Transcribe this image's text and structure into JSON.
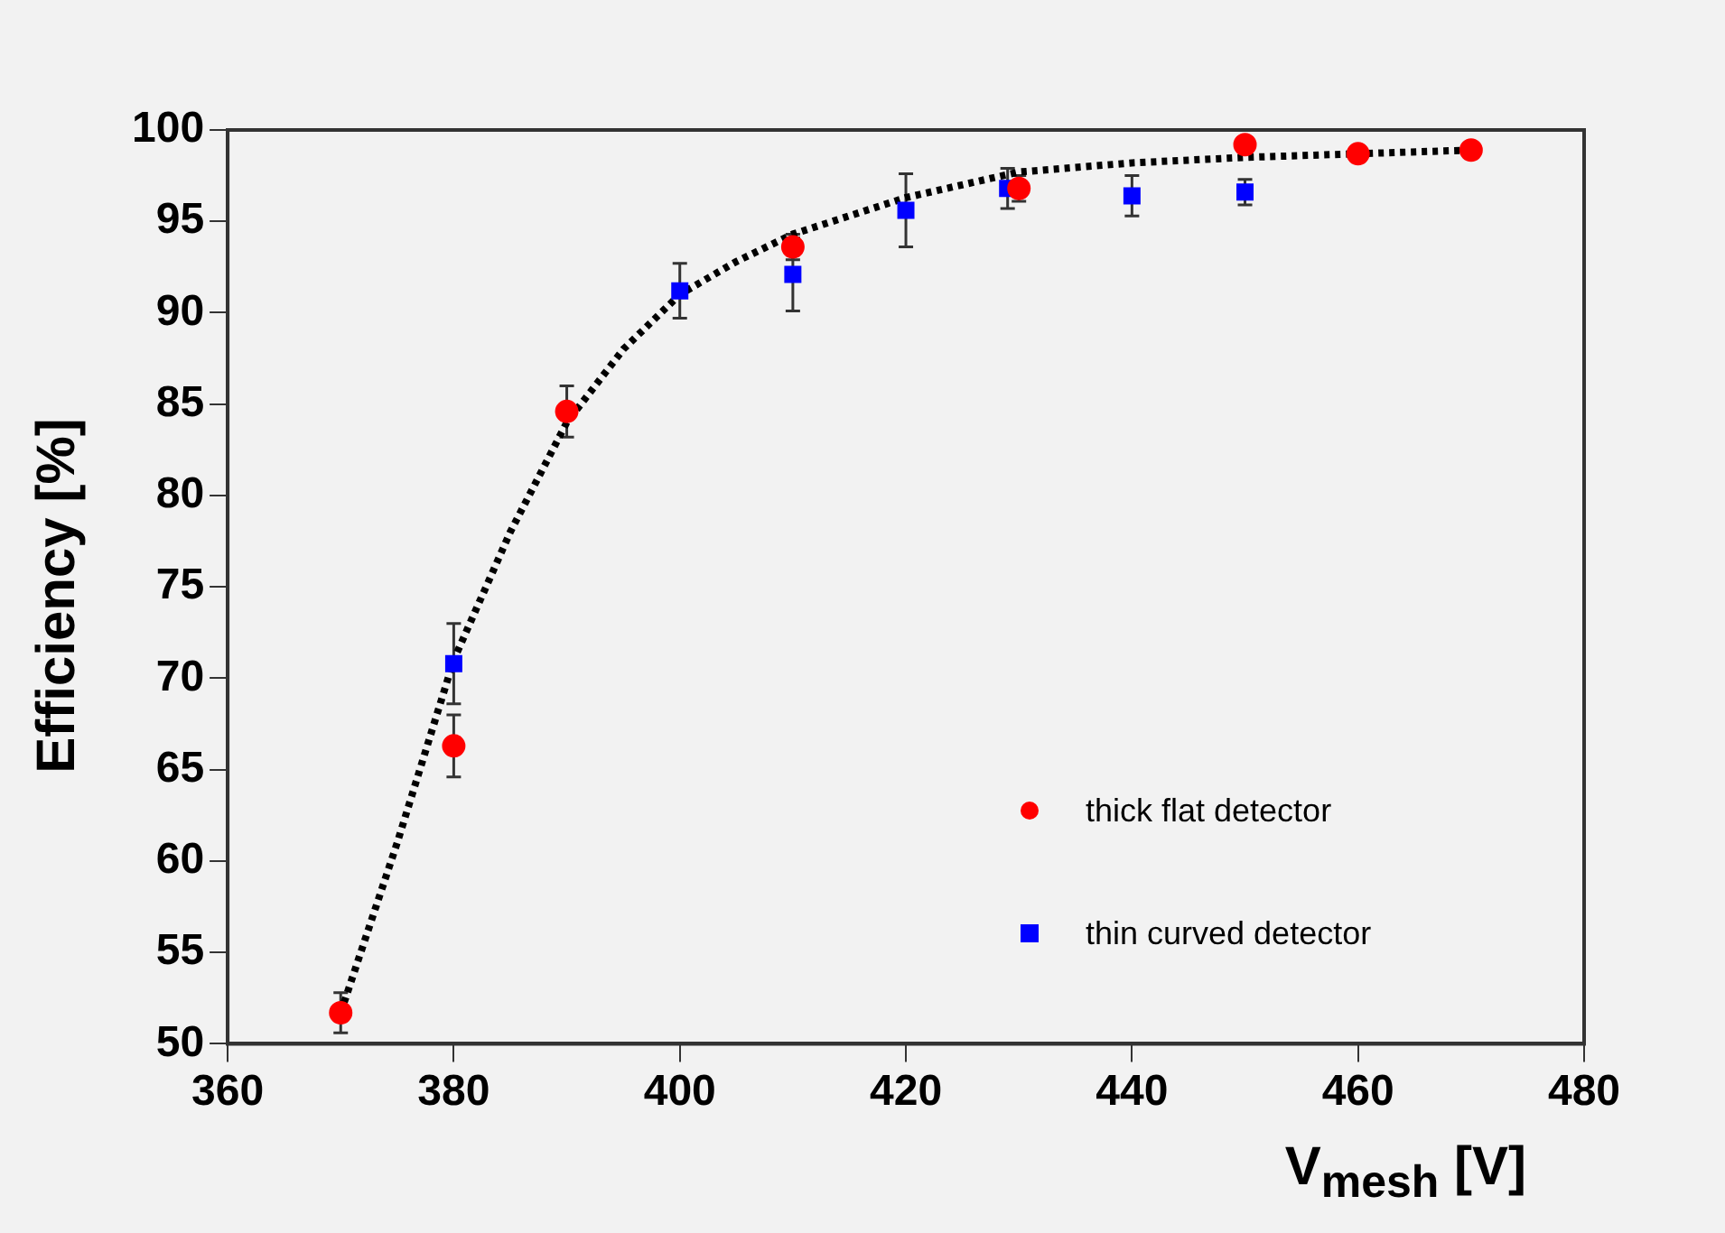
{
  "chart_data": {
    "type": "scatter",
    "xlabel": "V$_{mesh}$ [V]",
    "ylabel": "Efficiency [%]",
    "xlim": [
      360,
      480
    ],
    "xticks": [
      360,
      380,
      400,
      420,
      440,
      460,
      480
    ],
    "ylim": [
      50,
      100
    ],
    "yticks": [
      50,
      55,
      60,
      65,
      70,
      75,
      80,
      85,
      90,
      95,
      100
    ],
    "grid": false,
    "legend": "bottom right",
    "series": [
      {
        "name": "thick flat detector",
        "color": "#ff0000",
        "marker": "circle",
        "x": [
          370,
          380,
          390,
          410,
          430,
          450,
          460,
          470
        ],
        "values": [
          51.7,
          66.3,
          84.6,
          93.6,
          96.8,
          99.2,
          98.7,
          98.9
        ],
        "errors": [
          1.1,
          1.7,
          1.4,
          0.7,
          0.7,
          null,
          null,
          null
        ]
      },
      {
        "name": "thin curved detector",
        "color": "#0000ff",
        "marker": "square",
        "x": [
          380,
          400,
          410,
          420,
          429,
          440,
          450
        ],
        "values": [
          70.8,
          91.2,
          92.1,
          95.6,
          96.8,
          96.4,
          96.6
        ],
        "errors": [
          2.2,
          1.5,
          2,
          2,
          1.1,
          1.1,
          0.7
        ]
      },
      {
        "type": "line",
        "color": "#000000",
        "line_style": "dotted",
        "marker": "none",
        "x": [
          370,
          375,
          380,
          385,
          390,
          395,
          400,
          405,
          410,
          420,
          430,
          440,
          450,
          460,
          470
        ],
        "values": [
          51.7,
          61,
          71,
          78,
          84,
          88,
          91,
          92.8,
          94.3,
          96.3,
          97.7,
          98.2,
          98.5,
          98.7,
          98.9
        ]
      }
    ]
  }
}
